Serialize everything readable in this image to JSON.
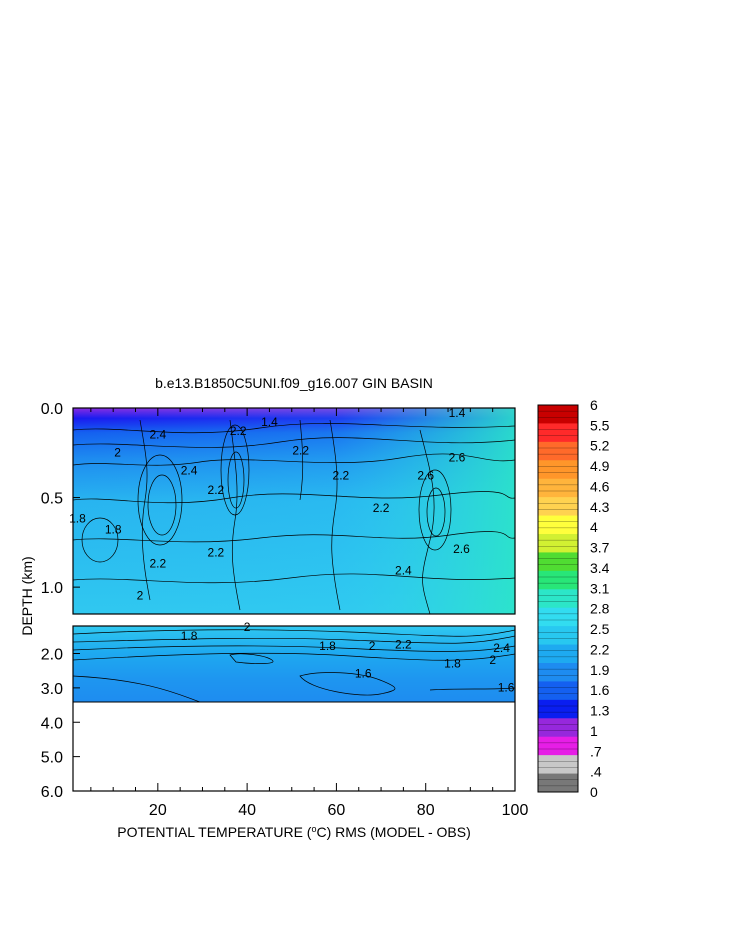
{
  "chart_data": {
    "type": "heatmap",
    "title": "b.e13.B1850C5UNI.f09_g16.007 GIN BASIN",
    "xlabel_prefix": "POTENTIAL TEMPERATURE (",
    "xlabel_sup": "o",
    "xlabel_suffix": "C) RMS (MODEL - OBS)",
    "ylabel": "DEPTH (km)",
    "x_range": [
      1,
      100
    ],
    "x_ticks": [
      "20",
      "40",
      "60",
      "80",
      "100"
    ],
    "x_tick_values": [
      20,
      40,
      60,
      80,
      100
    ],
    "upper_panel": {
      "depth_range_km": [
        0.0,
        1.15
      ],
      "y_ticks": [
        "0.0",
        "0.5",
        "1.0"
      ],
      "y_tick_values": [
        0.0,
        0.5,
        1.0
      ]
    },
    "lower_panel": {
      "depth_range_km": [
        1.2,
        6.0
      ],
      "data_max_depth_km": 3.3,
      "y_ticks": [
        "2.0",
        "3.0",
        "4.0",
        "5.0",
        "6.0"
      ],
      "y_tick_values": [
        2.0,
        3.0,
        4.0,
        5.0,
        6.0
      ]
    },
    "colorbar": {
      "labels": [
        "6",
        "5.5",
        "5.2",
        "4.9",
        "4.6",
        "4.3",
        "4",
        "3.7",
        "3.4",
        "3.1",
        "2.8",
        "2.5",
        "2.2",
        "1.9",
        "1.6",
        "1.3",
        "1",
        ".7",
        ".4",
        "0"
      ],
      "levels": [
        6,
        5.5,
        5.2,
        4.9,
        4.6,
        4.3,
        4,
        3.7,
        3.4,
        3.1,
        2.8,
        2.5,
        2.2,
        1.9,
        1.6,
        1.3,
        1,
        0.7,
        0.4,
        0
      ],
      "colors": [
        "#c80000",
        "#ff2a2a",
        "#ff6a2a",
        "#ff962a",
        "#ffb43c",
        "#ffd250",
        "#ffff3c",
        "#d2f032",
        "#50dc32",
        "#28e678",
        "#2ce6c8",
        "#32dcf0",
        "#28c8f0",
        "#1eaaf0",
        "#1e8cf0",
        "#1460f0",
        "#0a1ef0",
        "#9628dc",
        "#e61ee6",
        "#c8c8c8",
        "#787878"
      ]
    },
    "contour_labels_upper": [
      {
        "text": "1.4",
        "x": 87,
        "d": 0.05
      },
      {
        "text": "2.4",
        "x": 20,
        "d": 0.17
      },
      {
        "text": "2.2",
        "x": 38,
        "d": 0.15
      },
      {
        "text": "1.4",
        "x": 45,
        "d": 0.1
      },
      {
        "text": "2",
        "x": 11,
        "d": 0.27
      },
      {
        "text": "2.6",
        "x": 87,
        "d": 0.3
      },
      {
        "text": "2.6",
        "x": 80,
        "d": 0.4
      },
      {
        "text": "1.8",
        "x": 2,
        "d": 0.64
      },
      {
        "text": "1.8",
        "x": 10,
        "d": 0.7
      },
      {
        "text": "2.4",
        "x": 27,
        "d": 0.37
      },
      {
        "text": "2.2",
        "x": 33,
        "d": 0.48
      },
      {
        "text": "2.2",
        "x": 52,
        "d": 0.26
      },
      {
        "text": "2.2",
        "x": 61,
        "d": 0.4
      },
      {
        "text": "2.2",
        "x": 70,
        "d": 0.58
      },
      {
        "text": "2.6",
        "x": 88,
        "d": 0.81
      },
      {
        "text": "2.2",
        "x": 20,
        "d": 0.89
      },
      {
        "text": "2.2",
        "x": 33,
        "d": 0.83
      },
      {
        "text": "2.4",
        "x": 75,
        "d": 0.93
      },
      {
        "text": "2",
        "x": 16,
        "d": 1.07
      }
    ],
    "contour_labels_lower": [
      {
        "text": "2",
        "x": 40,
        "d": 1.35
      },
      {
        "text": "1.8",
        "x": 27,
        "d": 1.6
      },
      {
        "text": "1.8",
        "x": 58,
        "d": 1.9
      },
      {
        "text": "2",
        "x": 68,
        "d": 1.9
      },
      {
        "text": "2.2",
        "x": 75,
        "d": 1.85
      },
      {
        "text": "2.4",
        "x": 97,
        "d": 1.95
      },
      {
        "text": "1.8",
        "x": 86,
        "d": 2.4
      },
      {
        "text": "2",
        "x": 95,
        "d": 2.3
      },
      {
        "text": "1.6",
        "x": 66,
        "d": 2.7
      },
      {
        "text": "1.6",
        "x": 98,
        "d": 3.1
      }
    ]
  }
}
